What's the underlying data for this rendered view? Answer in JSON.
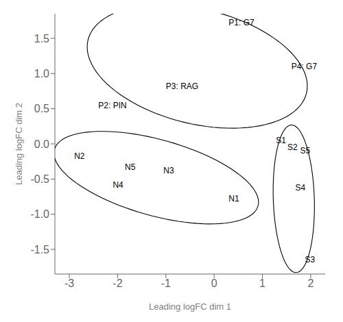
{
  "chart_data": {
    "type": "scatter",
    "xlabel": "Leading logFC dim 1",
    "ylabel": "Leading logFC dim 2",
    "xlim": [
      -3.3,
      2.3
    ],
    "ylim": [
      -1.85,
      1.85
    ],
    "xticks": [
      -3,
      -2,
      -1,
      0,
      1,
      2
    ],
    "yticks": [
      -1.5,
      {
        "value": -1.0,
        "label": "-1.0"
      },
      -0.5,
      {
        "value": 0.0,
        "label": "0.0"
      },
      0.5,
      {
        "value": 1.0,
        "label": "1.0"
      },
      1.5
    ],
    "grid": false,
    "series": [
      {
        "labels": [
          "P1: G7",
          "P2: PIN",
          "P3: RAG",
          "P4: G7"
        ],
        "x": [
          0.3,
          -2.4,
          -1.0,
          1.6
        ],
        "y": [
          1.72,
          0.55,
          0.82,
          1.1
        ],
        "color": "black"
      },
      {
        "labels": [
          "N1",
          "N2",
          "N3",
          "N4",
          "N5"
        ],
        "x": [
          0.3,
          -2.9,
          -1.05,
          -2.1,
          -1.85
        ],
        "y": [
          -0.78,
          -0.18,
          -0.38,
          -0.58,
          -0.33
        ],
        "color": "black"
      },
      {
        "labels": [
          "S1",
          "S2",
          "S3",
          "S4",
          "S5"
        ],
        "x": [
          1.28,
          1.52,
          1.88,
          1.68,
          1.78
        ],
        "y": [
          0.05,
          -0.05,
          -1.65,
          -0.62,
          -0.1
        ],
        "color": "black"
      }
    ],
    "ellipses": [
      {
        "cx": -0.35,
        "cy": 1.1,
        "width": 4.6,
        "height": 1.65,
        "angle": -8
      },
      {
        "cx": -1.2,
        "cy": -0.48,
        "width": 4.3,
        "height": 1.1,
        "angle": -10
      },
      {
        "cx": 1.65,
        "cy": -0.78,
        "width": 0.85,
        "height": 2.1,
        "angle": 3
      }
    ]
  }
}
